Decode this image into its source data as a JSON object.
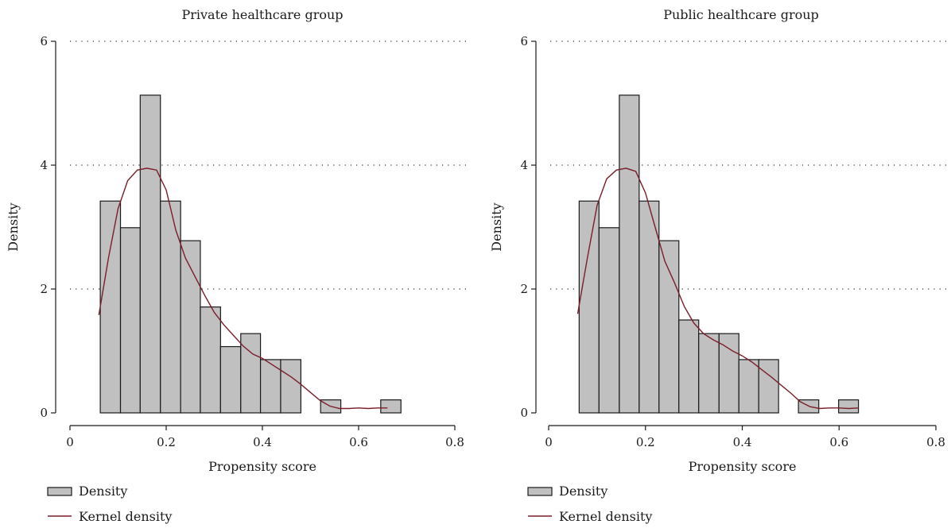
{
  "colors": {
    "bar_fill": "#c0c0c0",
    "bar_stroke": "#1a1a1a",
    "kde_line": "#7b1e2a",
    "axis": "#1a1a1a",
    "grid": "#333333"
  },
  "chart_data": [
    {
      "type": "bar",
      "title": "Private healthcare group",
      "xlabel": "Propensity score",
      "ylabel": "Density",
      "xlim": [
        0,
        0.8
      ],
      "ylim": [
        0,
        6
      ],
      "xticks": [
        "0",
        "0.2",
        "0.4",
        "0.6",
        "0.8"
      ],
      "yticks": [
        "0",
        "2",
        "4",
        "6"
      ],
      "grid": "dotted horizontal at y ticks",
      "legend": {
        "placement": "bottom-left",
        "entries": [
          "Density",
          "Kernel density"
        ]
      },
      "bins": [
        {
          "x0": 0.063,
          "x1": 0.105,
          "value": 3.42
        },
        {
          "x0": 0.105,
          "x1": 0.146,
          "value": 2.99
        },
        {
          "x0": 0.146,
          "x1": 0.188,
          "value": 5.13
        },
        {
          "x0": 0.188,
          "x1": 0.23,
          "value": 3.42
        },
        {
          "x0": 0.23,
          "x1": 0.271,
          "value": 2.78
        },
        {
          "x0": 0.271,
          "x1": 0.313,
          "value": 1.71
        },
        {
          "x0": 0.313,
          "x1": 0.355,
          "value": 1.07
        },
        {
          "x0": 0.355,
          "x1": 0.396,
          "value": 1.28
        },
        {
          "x0": 0.396,
          "x1": 0.438,
          "value": 0.86
        },
        {
          "x0": 0.438,
          "x1": 0.48,
          "value": 0.86
        },
        {
          "x0": 0.521,
          "x1": 0.563,
          "value": 0.21
        },
        {
          "x0": 0.646,
          "x1": 0.688,
          "value": 0.21
        }
      ],
      "kernel_density": {
        "x": [
          0.06,
          0.08,
          0.1,
          0.12,
          0.14,
          0.16,
          0.18,
          0.2,
          0.22,
          0.24,
          0.26,
          0.28,
          0.3,
          0.32,
          0.34,
          0.36,
          0.38,
          0.4,
          0.42,
          0.44,
          0.46,
          0.48,
          0.5,
          0.52,
          0.54,
          0.56,
          0.58,
          0.6,
          0.62,
          0.64,
          0.66
        ],
        "y": [
          1.58,
          2.5,
          3.3,
          3.75,
          3.92,
          3.95,
          3.92,
          3.6,
          2.95,
          2.5,
          2.2,
          1.9,
          1.62,
          1.42,
          1.25,
          1.08,
          0.95,
          0.88,
          0.78,
          0.68,
          0.58,
          0.46,
          0.33,
          0.2,
          0.11,
          0.07,
          0.07,
          0.08,
          0.07,
          0.08,
          0.08
        ]
      }
    },
    {
      "type": "bar",
      "title": "Public healthcare group",
      "xlabel": "Propensity score",
      "ylabel": "Density",
      "xlim": [
        0,
        0.8
      ],
      "ylim": [
        0,
        6
      ],
      "xticks": [
        "0",
        "0.2",
        "0.4",
        "0.6",
        "0.8"
      ],
      "yticks": [
        "0",
        "2",
        "4",
        "6"
      ],
      "grid": "dotted horizontal at y ticks",
      "legend": {
        "placement": "bottom-left",
        "entries": [
          "Density",
          "Kernel density"
        ]
      },
      "bins": [
        {
          "x0": 0.063,
          "x1": 0.104,
          "value": 3.42
        },
        {
          "x0": 0.104,
          "x1": 0.146,
          "value": 2.99
        },
        {
          "x0": 0.146,
          "x1": 0.187,
          "value": 5.13
        },
        {
          "x0": 0.187,
          "x1": 0.228,
          "value": 3.42
        },
        {
          "x0": 0.228,
          "x1": 0.269,
          "value": 2.78
        },
        {
          "x0": 0.269,
          "x1": 0.31,
          "value": 1.5
        },
        {
          "x0": 0.31,
          "x1": 0.352,
          "value": 1.28
        },
        {
          "x0": 0.352,
          "x1": 0.393,
          "value": 1.28
        },
        {
          "x0": 0.393,
          "x1": 0.434,
          "value": 0.86
        },
        {
          "x0": 0.434,
          "x1": 0.475,
          "value": 0.86
        },
        {
          "x0": 0.516,
          "x1": 0.558,
          "value": 0.21
        },
        {
          "x0": 0.599,
          "x1": 0.64,
          "value": 0.21
        }
      ],
      "kernel_density": {
        "x": [
          0.06,
          0.08,
          0.1,
          0.12,
          0.14,
          0.16,
          0.18,
          0.2,
          0.22,
          0.24,
          0.26,
          0.28,
          0.3,
          0.32,
          0.34,
          0.36,
          0.38,
          0.4,
          0.42,
          0.44,
          0.46,
          0.48,
          0.5,
          0.52,
          0.54,
          0.56,
          0.58,
          0.6,
          0.62,
          0.64
        ],
        "y": [
          1.6,
          2.5,
          3.35,
          3.78,
          3.92,
          3.95,
          3.9,
          3.55,
          3.0,
          2.45,
          2.1,
          1.72,
          1.45,
          1.28,
          1.18,
          1.1,
          1.0,
          0.92,
          0.82,
          0.7,
          0.58,
          0.45,
          0.32,
          0.18,
          0.1,
          0.07,
          0.08,
          0.08,
          0.07,
          0.08
        ]
      }
    }
  ]
}
